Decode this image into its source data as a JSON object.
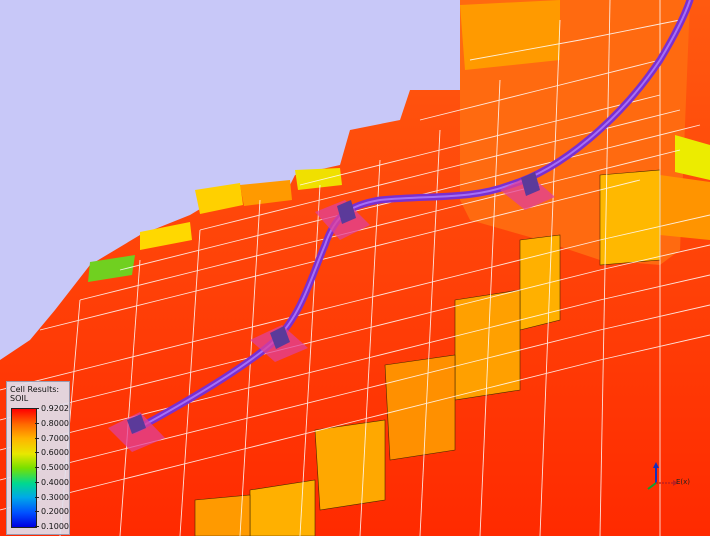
{
  "viewer": {
    "background_color": "#c8c8f8",
    "well_color": "#8a3fd8",
    "well_marker_color": "#5b3a9a",
    "completion_color": "#e0409a"
  },
  "legend": {
    "title_line1": "Cell Results:",
    "title_line2": "SOIL",
    "labels": [
      "0.9202",
      "0.8000",
      "0.7000",
      "0.6000",
      "0.5000",
      "0.4000",
      "0.3000",
      "0.2000",
      "0.1000"
    ],
    "colors": [
      "#ff0000",
      "#ff6a00",
      "#ffb400",
      "#e8e800",
      "#78e000",
      "#00d890",
      "#00a8e8",
      "#0050ff",
      "#0000e0"
    ]
  },
  "axes": {
    "label": "E(x)",
    "icon": "axis-triad-icon"
  }
}
